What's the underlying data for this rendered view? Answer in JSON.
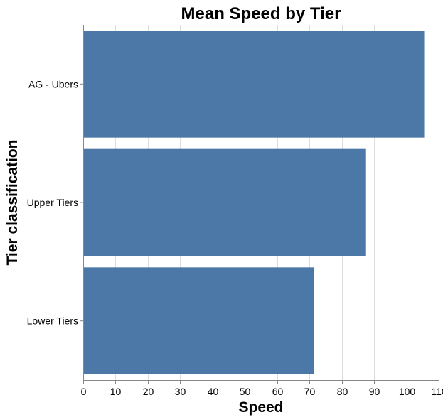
{
  "chart_data": {
    "type": "bar",
    "orientation": "horizontal",
    "title": "Mean Speed by Tier",
    "xlabel": "Speed",
    "ylabel": "Tier classification",
    "categories": [
      "AG - Ubers",
      "Upper Tiers",
      "Lower Tiers"
    ],
    "values": [
      105.5,
      87.5,
      71.5
    ],
    "xlim": [
      0,
      110
    ],
    "xticks": [
      0,
      10,
      20,
      30,
      40,
      50,
      60,
      70,
      80,
      90,
      100,
      110
    ],
    "grid": true,
    "bar_color": "#4c78a8"
  }
}
